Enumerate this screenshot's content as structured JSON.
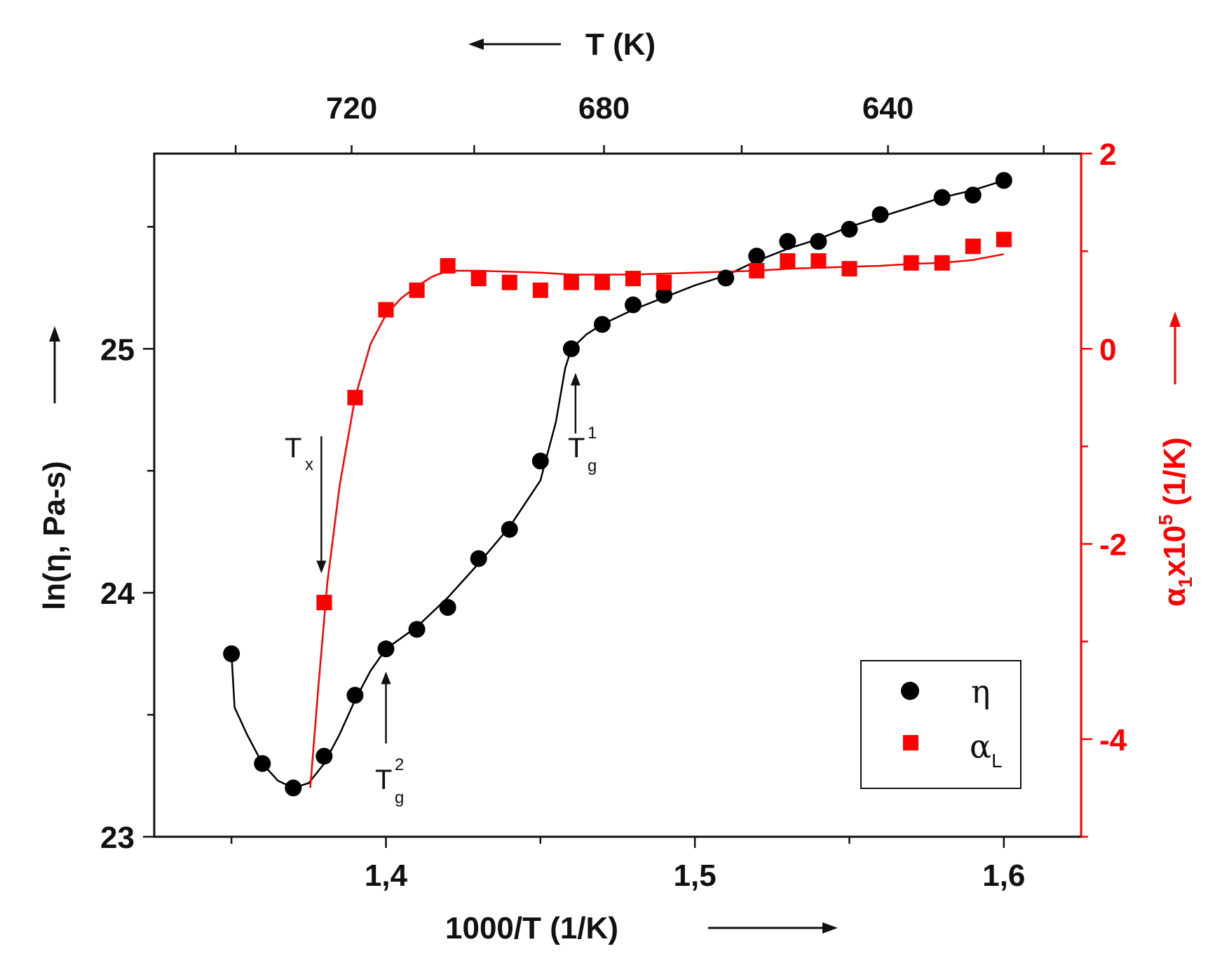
{
  "chart_data": {
    "type": "scatter",
    "x_axis": {
      "label": "1000/T (1/K)",
      "range": [
        1.325,
        1.625
      ],
      "ticks": [
        1.4,
        1.5,
        1.6
      ],
      "tick_labels": [
        "1,4",
        "1,5",
        "1,6"
      ]
    },
    "top_axis": {
      "label": "T (K)",
      "tick_values_K": [
        720,
        680,
        640
      ],
      "tick_labels": [
        "720",
        "680",
        "640"
      ]
    },
    "y_left": {
      "label": "ln(η, Pa-s)",
      "range": [
        23,
        25.8
      ],
      "ticks": [
        23,
        24,
        25
      ],
      "tick_labels": [
        "23",
        "24",
        "25"
      ]
    },
    "y_right": {
      "label_prefix": "α",
      "label_sub": "1",
      "label_mid": "x10",
      "label_sup": "5",
      "label_suffix": " (1/K)",
      "range": [
        -5,
        2
      ],
      "ticks": [
        2,
        0,
        -2,
        -4
      ],
      "tick_labels": [
        "2",
        "0",
        "-2",
        "-4"
      ],
      "color": "#ff0000"
    },
    "series": [
      {
        "name": "η",
        "marker": "circle",
        "color": "#000000",
        "axis": "left",
        "points": [
          [
            1.35,
            23.75
          ],
          [
            1.36,
            23.3
          ],
          [
            1.37,
            23.2
          ],
          [
            1.38,
            23.33
          ],
          [
            1.39,
            23.58
          ],
          [
            1.4,
            23.77
          ],
          [
            1.41,
            23.85
          ],
          [
            1.42,
            23.94
          ],
          [
            1.43,
            24.14
          ],
          [
            1.44,
            24.26
          ],
          [
            1.45,
            24.54
          ],
          [
            1.46,
            25.0
          ],
          [
            1.47,
            25.1
          ],
          [
            1.48,
            25.18
          ],
          [
            1.49,
            25.22
          ],
          [
            1.51,
            25.29
          ],
          [
            1.52,
            25.38
          ],
          [
            1.53,
            25.44
          ],
          [
            1.54,
            25.44
          ],
          [
            1.55,
            25.49
          ],
          [
            1.56,
            25.55
          ],
          [
            1.58,
            25.62
          ],
          [
            1.59,
            25.63
          ],
          [
            1.6,
            25.69
          ]
        ],
        "fit": [
          [
            1.35,
            23.75
          ],
          [
            1.351,
            23.53
          ],
          [
            1.355,
            23.42
          ],
          [
            1.36,
            23.3
          ],
          [
            1.365,
            23.23
          ],
          [
            1.37,
            23.2
          ],
          [
            1.375,
            23.22
          ],
          [
            1.38,
            23.3
          ],
          [
            1.385,
            23.42
          ],
          [
            1.39,
            23.56
          ],
          [
            1.395,
            23.68
          ],
          [
            1.4,
            23.77
          ],
          [
            1.41,
            23.86
          ],
          [
            1.42,
            23.98
          ],
          [
            1.43,
            24.12
          ],
          [
            1.44,
            24.27
          ],
          [
            1.45,
            24.46
          ],
          [
            1.455,
            24.7
          ],
          [
            1.458,
            24.92
          ],
          [
            1.46,
            25.0
          ],
          [
            1.465,
            25.06
          ],
          [
            1.47,
            25.1
          ],
          [
            1.48,
            25.16
          ],
          [
            1.49,
            25.21
          ],
          [
            1.5,
            25.26
          ],
          [
            1.51,
            25.3
          ],
          [
            1.52,
            25.36
          ],
          [
            1.53,
            25.41
          ],
          [
            1.54,
            25.45
          ],
          [
            1.55,
            25.5
          ],
          [
            1.56,
            25.54
          ],
          [
            1.57,
            25.58
          ],
          [
            1.58,
            25.62
          ],
          [
            1.59,
            25.65
          ],
          [
            1.6,
            25.69
          ]
        ]
      },
      {
        "name": "α_L",
        "marker": "square",
        "color": "#ff0000",
        "axis": "right",
        "points": [
          [
            1.38,
            -2.6
          ],
          [
            1.39,
            -0.5
          ],
          [
            1.4,
            0.4
          ],
          [
            1.41,
            0.6
          ],
          [
            1.42,
            0.85
          ],
          [
            1.43,
            0.72
          ],
          [
            1.44,
            0.68
          ],
          [
            1.45,
            0.6
          ],
          [
            1.46,
            0.68
          ],
          [
            1.47,
            0.68
          ],
          [
            1.48,
            0.72
          ],
          [
            1.49,
            0.68
          ],
          [
            1.52,
            0.8
          ],
          [
            1.53,
            0.9
          ],
          [
            1.54,
            0.9
          ],
          [
            1.55,
            0.82
          ],
          [
            1.57,
            0.88
          ],
          [
            1.58,
            0.88
          ],
          [
            1.59,
            1.05
          ],
          [
            1.6,
            1.12
          ]
        ],
        "fit": [
          [
            1.3755,
            -4.5
          ],
          [
            1.378,
            -3.5
          ],
          [
            1.381,
            -2.4
          ],
          [
            1.385,
            -1.4
          ],
          [
            1.39,
            -0.5
          ],
          [
            1.395,
            0.05
          ],
          [
            1.4,
            0.35
          ],
          [
            1.405,
            0.52
          ],
          [
            1.41,
            0.64
          ],
          [
            1.415,
            0.74
          ],
          [
            1.42,
            0.8
          ],
          [
            1.43,
            0.8
          ],
          [
            1.44,
            0.79
          ],
          [
            1.45,
            0.78
          ],
          [
            1.46,
            0.76
          ],
          [
            1.47,
            0.76
          ],
          [
            1.48,
            0.76
          ],
          [
            1.49,
            0.77
          ],
          [
            1.5,
            0.78
          ],
          [
            1.51,
            0.79
          ],
          [
            1.52,
            0.8
          ],
          [
            1.53,
            0.82
          ],
          [
            1.54,
            0.83
          ],
          [
            1.55,
            0.84
          ],
          [
            1.56,
            0.85
          ],
          [
            1.57,
            0.87
          ],
          [
            1.58,
            0.88
          ],
          [
            1.59,
            0.91
          ],
          [
            1.6,
            0.97
          ]
        ]
      }
    ],
    "annotations": [
      {
        "text": "T",
        "sub": "x",
        "target": [
          1.38,
          24.08
        ],
        "axis": "left"
      },
      {
        "text": "T",
        "sub": "g",
        "sup": "2",
        "target": [
          1.4,
          23.7
        ],
        "axis": "left"
      },
      {
        "text": "T",
        "sub": "g",
        "sup": "1",
        "target": [
          1.46,
          24.93
        ],
        "axis": "left"
      }
    ],
    "legend": {
      "position": "bottom-right",
      "entries": [
        {
          "symbol": "circle",
          "label": "η",
          "sub": ""
        },
        {
          "symbol": "square",
          "label": "α",
          "sub": "L"
        }
      ]
    }
  }
}
